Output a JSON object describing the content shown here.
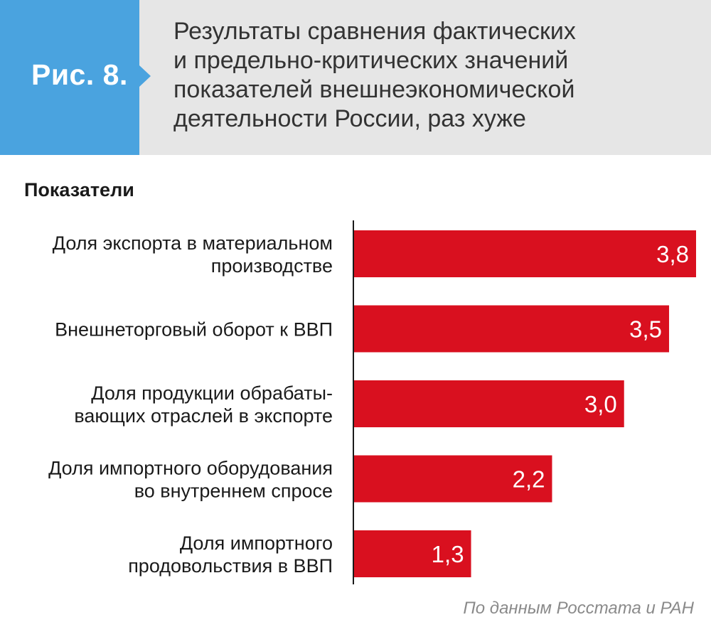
{
  "figure": {
    "label": "Рис. 8.",
    "title_lines": [
      "Результаты сравнения фактических",
      "и предельно-критических значений",
      "показателей внешнеэкономической",
      "деятельности России, раз хуже"
    ]
  },
  "colors": {
    "header_bg": "#e6e6e6",
    "badge": "#4aa3df",
    "bar": "#d9101f",
    "axis": "#1a1a1a"
  },
  "chart_data": {
    "type": "bar",
    "orientation": "horizontal",
    "title": "Результаты сравнения фактических и предельно-критических значений показателей внешнеэкономической деятельности России, раз хуже",
    "category_axis_title": "Показатели",
    "categories": [
      [
        "Доля экспорта в материальном",
        "производстве"
      ],
      [
        "Внешнеторговый оборот к ВВП"
      ],
      [
        "Доля продукции обрабаты-",
        "вающих отраслей в экспорте"
      ],
      [
        "Доля импортного оборудования",
        "во внутреннем спросе"
      ],
      [
        "Доля импортного",
        "продовольствия в ВВП"
      ]
    ],
    "values": [
      3.8,
      3.5,
      3.0,
      2.2,
      1.3
    ],
    "value_labels": [
      "3,8",
      "3,5",
      "3,0",
      "2,2",
      "1,3"
    ],
    "xlim": [
      0,
      3.8
    ],
    "grid": false,
    "legend": "none"
  },
  "source": "По данным Росстата и РАН"
}
